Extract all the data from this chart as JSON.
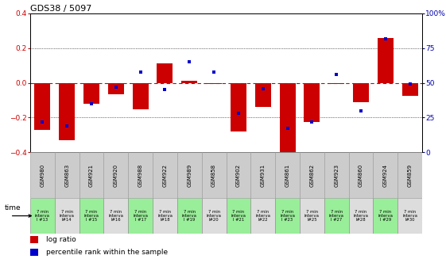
{
  "title": "GDS38 / 5097",
  "categories": [
    "GSM980",
    "GSM863",
    "GSM921",
    "GSM920",
    "GSM988",
    "GSM922",
    "GSM989",
    "GSM858",
    "GSM902",
    "GSM931",
    "GSM861",
    "GSM862",
    "GSM923",
    "GSM860",
    "GSM924",
    "GSM859"
  ],
  "time_labels": [
    "7 min\ninterva\nl #13",
    "7 min\ninterva\nl#14",
    "7 min\ninterva\nl #15",
    "7 min\ninterva\nl#16",
    "7 min\ninterva\nl #17",
    "7 min\ninterva\nl#18",
    "7 min\ninterva\nl #19",
    "7 min\ninterva\nl#20",
    "7 min\ninterva\nl #21",
    "7 min\ninterva\nl#22",
    "7 min\ninterva\nl #23",
    "7 min\ninterva\nl#25",
    "7 min\ninterva\nl #27",
    "7 min\ninterva\nl#28",
    "7 min\ninterva\nl #29",
    "7 min\ninterva\nl#30"
  ],
  "log_ratio": [
    -0.27,
    -0.33,
    -0.12,
    -0.065,
    -0.155,
    0.11,
    0.01,
    -0.005,
    -0.28,
    -0.14,
    -0.42,
    -0.225,
    -0.005,
    -0.11,
    0.26,
    -0.075
  ],
  "percentile": [
    22,
    19,
    35,
    47,
    58,
    45,
    65,
    58,
    28,
    46,
    17,
    22,
    56,
    30,
    82,
    49
  ],
  "ylim_left": [
    -0.4,
    0.4
  ],
  "ylim_right": [
    0,
    100
  ],
  "yticks_left": [
    -0.4,
    -0.2,
    0.0,
    0.2,
    0.4
  ],
  "yticks_right": [
    0,
    25,
    50,
    75,
    100
  ],
  "bar_color": "#cc0000",
  "dot_color": "#0000cc",
  "zero_line_color": "#cc0000",
  "bg_color": "#ffffff",
  "plot_bg_color": "#ffffff",
  "border_color": "#000000",
  "label_color_left": "#cc0000",
  "label_color_right": "#0000aa",
  "title_color": "#000000",
  "time_bg_odd": "#99ee99",
  "time_bg_even": "#dddddd",
  "gsm_bg": "#cccccc",
  "bar_width": 0.65,
  "legend_log_ratio": "log ratio",
  "legend_percentile": "percentile rank within the sample"
}
